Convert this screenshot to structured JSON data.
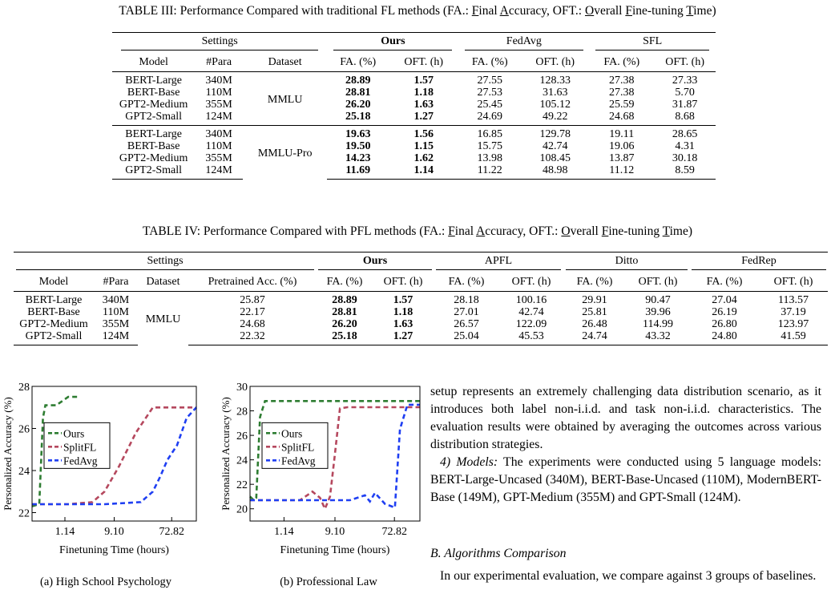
{
  "table3": {
    "caption_pre": "TABLE III: Performance Compared with traditional FL methods (FA.: ",
    "caption_f": "F",
    "caption_inal": "inal ",
    "caption_a": "A",
    "caption_ccuracy": "ccuracy, OFT.: ",
    "caption_o": "O",
    "caption_verall": "verall ",
    "caption_f2": "F",
    "caption_ine": "ine-tuning ",
    "caption_t": "T",
    "caption_ime": "ime)",
    "groups": {
      "settings": "Settings",
      "ours": "Ours",
      "fedavg": "FedAvg",
      "sfl": "SFL"
    },
    "columns": [
      "Model",
      "#Para",
      "Dataset",
      "FA. (%)",
      "OFT. (h)",
      "FA. (%)",
      "OFT. (h)",
      "FA. (%)",
      "OFT. (h)"
    ],
    "block1": {
      "dataset": "MMLU",
      "rows": [
        [
          "BERT-Large",
          "340M",
          "28.89",
          "1.57",
          "27.55",
          "128.33",
          "27.38",
          "27.33"
        ],
        [
          "BERT-Base",
          "110M",
          "28.81",
          "1.18",
          "27.53",
          "31.63",
          "27.38",
          "5.70"
        ],
        [
          "GPT2-Medium",
          "355M",
          "26.20",
          "1.63",
          "25.45",
          "105.12",
          "25.59",
          "31.87"
        ],
        [
          "GPT2-Small",
          "124M",
          "25.18",
          "1.27",
          "24.69",
          "49.22",
          "24.68",
          "8.68"
        ]
      ]
    },
    "block2": {
      "dataset": "MMLU-Pro",
      "rows": [
        [
          "BERT-Large",
          "340M",
          "19.63",
          "1.56",
          "16.85",
          "129.78",
          "19.11",
          "28.65"
        ],
        [
          "BERT-Base",
          "110M",
          "19.50",
          "1.15",
          "15.75",
          "42.74",
          "19.06",
          "4.31"
        ],
        [
          "GPT2-Medium",
          "355M",
          "14.23",
          "1.62",
          "13.98",
          "108.45",
          "13.87",
          "30.18"
        ],
        [
          "GPT2-Small",
          "124M",
          "11.69",
          "1.14",
          "11.22",
          "48.98",
          "11.12",
          "8.59"
        ]
      ]
    }
  },
  "table4": {
    "caption_pre": "TABLE IV: Performance Compared with PFL methods (FA.: ",
    "caption_f": "F",
    "caption_inal": "inal ",
    "caption_a": "A",
    "caption_ccuracy": "ccuracy, OFT.: ",
    "caption_o": "O",
    "caption_verall": "verall ",
    "caption_f2": "F",
    "caption_ine": "ine-tuning ",
    "caption_t": "T",
    "caption_ime": "ime)",
    "groups": {
      "settings": "Settings",
      "ours": "Ours",
      "apfl": "APFL",
      "ditto": "Ditto",
      "fedrep": "FedRep"
    },
    "columns": [
      "Model",
      "#Para",
      "Dataset",
      "Pretrained Acc. (%)",
      "FA. (%)",
      "OFT. (h)",
      "FA. (%)",
      "OFT. (h)",
      "FA. (%)",
      "OFT. (h)",
      "FA. (%)",
      "OFT. (h)"
    ],
    "dataset": "MMLU",
    "rows": [
      [
        "BERT-Large",
        "340M",
        "25.87",
        "28.89",
        "1.57",
        "28.18",
        "100.16",
        "29.91",
        "90.47",
        "27.04",
        "113.57"
      ],
      [
        "BERT-Base",
        "110M",
        "22.17",
        "28.81",
        "1.18",
        "27.01",
        "42.74",
        "25.81",
        "39.96",
        "26.19",
        "37.19"
      ],
      [
        "GPT2-Medium",
        "355M",
        "24.68",
        "26.20",
        "1.63",
        "26.57",
        "122.09",
        "26.48",
        "114.99",
        "26.80",
        "123.97"
      ],
      [
        "GPT2-Small",
        "124M",
        "22.32",
        "25.18",
        "1.27",
        "25.04",
        "45.53",
        "24.74",
        "43.32",
        "24.80",
        "41.59"
      ]
    ]
  },
  "figure": {
    "subcaption_a": "(a) High School Psychology",
    "subcaption_b": "(b) Professional Law"
  },
  "chart_data": [
    {
      "type": "line",
      "xlabel": "Finetuning Time (hours)",
      "ylabel": "Personalized Accuracy (%)",
      "xticks": [
        "1.14",
        "9.10",
        "72.82"
      ],
      "yticks": [
        "22",
        "24",
        "26",
        "28"
      ],
      "ylim": [
        21.6,
        28.0
      ],
      "legend_position": "upper-left",
      "colors": {
        "Ours": "#2e7d32",
        "SplitFL": "#b5485e",
        "FedAvg": "#1f3ff2"
      },
      "series": [
        {
          "name": "Ours",
          "x": [
            0.0,
            0.3,
            0.45,
            0.55,
            1.0,
            1.5,
            1.9
          ],
          "y": [
            22.3,
            22.4,
            26.5,
            27.1,
            27.1,
            27.5,
            27.5
          ]
        },
        {
          "name": "SplitFL",
          "x": [
            0.0,
            1.5,
            2.5,
            3.0,
            3.3,
            3.6,
            4.3,
            5.0,
            5.2,
            5.4,
            6.0,
            6.8
          ],
          "y": [
            22.4,
            22.4,
            22.5,
            23.0,
            23.6,
            24.2,
            25.8,
            27.0,
            27.0,
            27.0,
            27.0,
            27.0
          ]
        },
        {
          "name": "FedAvg",
          "x": [
            0.0,
            3.0,
            4.5,
            5.0,
            5.3,
            5.6,
            6.0,
            6.4,
            6.8
          ],
          "y": [
            22.4,
            22.4,
            22.5,
            23.0,
            23.7,
            24.5,
            25.2,
            26.5,
            27.0
          ]
        }
      ]
    },
    {
      "type": "line",
      "xlabel": "Finetuning Time (hours)",
      "ylabel": "Personalized Accuracy (%)",
      "xticks": [
        "1.14",
        "9.10",
        "72.82"
      ],
      "yticks": [
        "20",
        "22",
        "24",
        "26",
        "28",
        "30"
      ],
      "ylim": [
        19.0,
        30.0
      ],
      "legend_position": "upper-left",
      "colors": {
        "Ours": "#2e7d32",
        "SplitFL": "#b5485e",
        "FedAvg": "#1f3ff2"
      },
      "series": [
        {
          "name": "Ours",
          "x": [
            0.0,
            0.15,
            0.25,
            0.4,
            0.6,
            1.2,
            2.0,
            6.8
          ],
          "y": [
            21.0,
            20.7,
            20.9,
            27.5,
            28.8,
            28.8,
            28.8,
            28.8
          ]
        },
        {
          "name": "SplitFL",
          "x": [
            0.0,
            2.0,
            2.5,
            2.8,
            3.0,
            3.2,
            3.4,
            3.6,
            3.9,
            4.5,
            5.5,
            6.8
          ],
          "y": [
            20.7,
            20.7,
            21.4,
            20.9,
            20.0,
            21.0,
            24.5,
            28.2,
            28.3,
            28.3,
            28.3,
            28.3
          ]
        },
        {
          "name": "FedAvg",
          "x": [
            0.0,
            4.0,
            4.6,
            4.8,
            5.0,
            5.4,
            5.8,
            6.0,
            6.3,
            6.8
          ],
          "y": [
            20.7,
            20.7,
            21.1,
            20.6,
            21.3,
            20.4,
            20.1,
            26.5,
            28.5,
            28.5
          ]
        }
      ]
    }
  ],
  "body": {
    "para1": "setup represents an extremely challenging data distribution scenario, as it introduces both label non-i.i.d. and task non-i.i.d. characteristics. The evaluation results were obtained by averaging the outcomes across various distribution strategies.",
    "models_label": "4) Models:",
    "models_text": " The experiments were conducted using 5 language models: BERT-Large-Uncased (340M), BERT-Base-Uncased (110M), ModernBERT-Base (149M), GPT-Medium (355M) and GPT-Small (124M).",
    "section": "B. Algorithms Comparison",
    "para3": "In our experimental evaluation, we compare against 3 groups of baselines."
  }
}
